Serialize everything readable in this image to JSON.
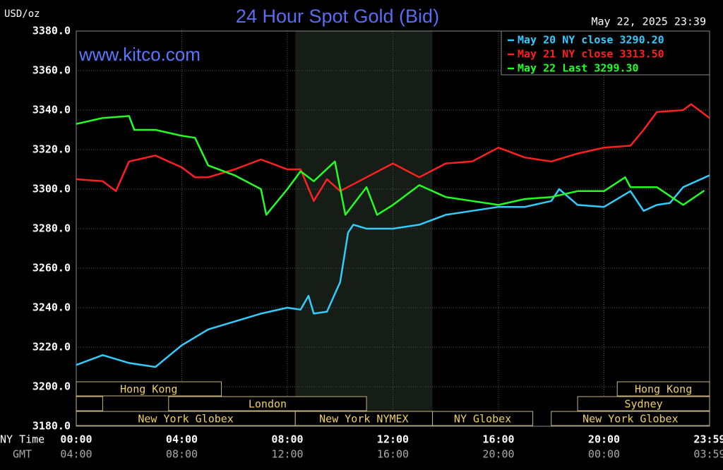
{
  "chart_data": {
    "type": "line",
    "title": "24 Hour Spot Gold (Bid)",
    "unit": "USD/oz",
    "watermark": "www.kitco.com",
    "timestamp": "May 22, 2025 23:39",
    "x_label": "NY Time",
    "x2_label": "GMT",
    "xlim": [
      0,
      24
    ],
    "xticks": [
      {
        "value": 0,
        "label": "00:00"
      },
      {
        "value": 4,
        "label": "04:00"
      },
      {
        "value": 8,
        "label": "08:00"
      },
      {
        "value": 12,
        "label": "12:00"
      },
      {
        "value": 16,
        "label": "16:00"
      },
      {
        "value": 20,
        "label": "20:00"
      },
      {
        "value": 24,
        "label": "23:59"
      }
    ],
    "x2ticks": [
      {
        "value": 0,
        "label": "04:00"
      },
      {
        "value": 4,
        "label": "08:00"
      },
      {
        "value": 8,
        "label": "12:00"
      },
      {
        "value": 12,
        "label": "16:00"
      },
      {
        "value": 16,
        "label": "20:00"
      },
      {
        "value": 20,
        "label": "00:00"
      },
      {
        "value": 24,
        "label": "03:59"
      }
    ],
    "ylim": [
      3180,
      3380
    ],
    "yticks": [
      {
        "value": 3180,
        "label": "3180.0"
      },
      {
        "value": 3200,
        "label": "3200.0"
      },
      {
        "value": 3220,
        "label": "3220.0"
      },
      {
        "value": 3240,
        "label": "3240.0"
      },
      {
        "value": 3260,
        "label": "3260.0"
      },
      {
        "value": 3280,
        "label": "3280.0"
      },
      {
        "value": 3300,
        "label": "3300.0"
      },
      {
        "value": 3320,
        "label": "3320.0"
      },
      {
        "value": 3340,
        "label": "3340.0"
      },
      {
        "value": 3360,
        "label": "3360.0"
      },
      {
        "value": 3380,
        "label": "3380.0"
      }
    ],
    "grid": true,
    "legend": "top-right",
    "shaded": [
      8.3,
      13.5
    ],
    "sessions": [
      {
        "name": "Hong Kong",
        "start": 0,
        "end": 5.5,
        "row": 1
      },
      {
        "name": "Hong Kong",
        "start": 20.5,
        "end": 24,
        "row": 1
      },
      {
        "name": null,
        "start": 0,
        "end": 1,
        "row": 2
      },
      {
        "name": "London",
        "start": 3.5,
        "end": 11,
        "row": 2
      },
      {
        "name": "Sydney",
        "start": 19,
        "end": 24,
        "row": 2
      },
      {
        "name": "New York Globex",
        "start": 0,
        "end": 8.3,
        "row": 3
      },
      {
        "name": "New York NYMEX",
        "start": 8.3,
        "end": 13.5,
        "row": 3
      },
      {
        "name": "NY Globex",
        "start": 13.5,
        "end": 17.3,
        "row": 3
      },
      {
        "name": "New York Globex",
        "start": 18,
        "end": 24,
        "row": 3
      }
    ],
    "series": [
      {
        "name": "May 20 NY close 3290.20",
        "color": "#33ccff",
        "x": [
          0,
          1,
          2,
          3,
          4,
          5,
          6,
          7,
          8,
          8.5,
          8.8,
          9,
          9.5,
          10,
          10.3,
          10.5,
          11,
          12,
          13,
          14,
          15,
          16,
          17,
          18,
          18.3,
          19,
          20,
          21,
          21.5,
          22,
          22.5,
          23,
          24
        ],
        "values": [
          3211,
          3216,
          3212,
          3210,
          3221,
          3229,
          3233,
          3237,
          3240,
          3239,
          3246,
          3237,
          3238,
          3253,
          3278,
          3282,
          3280,
          3280,
          3282,
          3287,
          3289,
          3291,
          3291,
          3294,
          3300,
          3292,
          3291,
          3299,
          3289,
          3292,
          3293,
          3301,
          3307
        ]
      },
      {
        "name": "May 21 NY close 3313.50",
        "color": "#ff2020",
        "x": [
          0,
          1,
          1.5,
          2,
          3,
          4,
          4.5,
          5,
          6,
          7,
          8,
          8.5,
          9,
          9.5,
          10,
          11,
          12,
          13,
          14,
          15,
          16,
          17,
          18,
          19,
          20,
          21,
          21.5,
          22,
          23,
          23.3,
          24
        ],
        "values": [
          3305,
          3304,
          3299,
          3314,
          3317,
          3311,
          3306,
          3306,
          3310,
          3315,
          3310,
          3310,
          3294,
          3305,
          3299,
          3306,
          3313,
          3306,
          3313,
          3314,
          3321,
          3316,
          3314,
          3318,
          3321,
          3322,
          3330,
          3339,
          3340,
          3343,
          3336
        ]
      },
      {
        "name": "May 22 Last 3299.30",
        "color": "#22ff22",
        "x": [
          0,
          1,
          2,
          2.2,
          3,
          4,
          4.5,
          5,
          6,
          7,
          7.2,
          8,
          8.5,
          9,
          9.8,
          10.2,
          11,
          11.4,
          12,
          13,
          14,
          15,
          16,
          17,
          18,
          19,
          20,
          20.8,
          21,
          22,
          23,
          23.8
        ],
        "values": [
          3333,
          3336,
          3337,
          3330,
          3330,
          3327,
          3326,
          3312,
          3307,
          3300,
          3287,
          3300,
          3309,
          3304,
          3314,
          3287,
          3301,
          3287,
          3292,
          3302,
          3296,
          3294,
          3292,
          3295,
          3296,
          3299,
          3299,
          3306,
          3301,
          3301,
          3292,
          3299.3
        ]
      }
    ]
  }
}
